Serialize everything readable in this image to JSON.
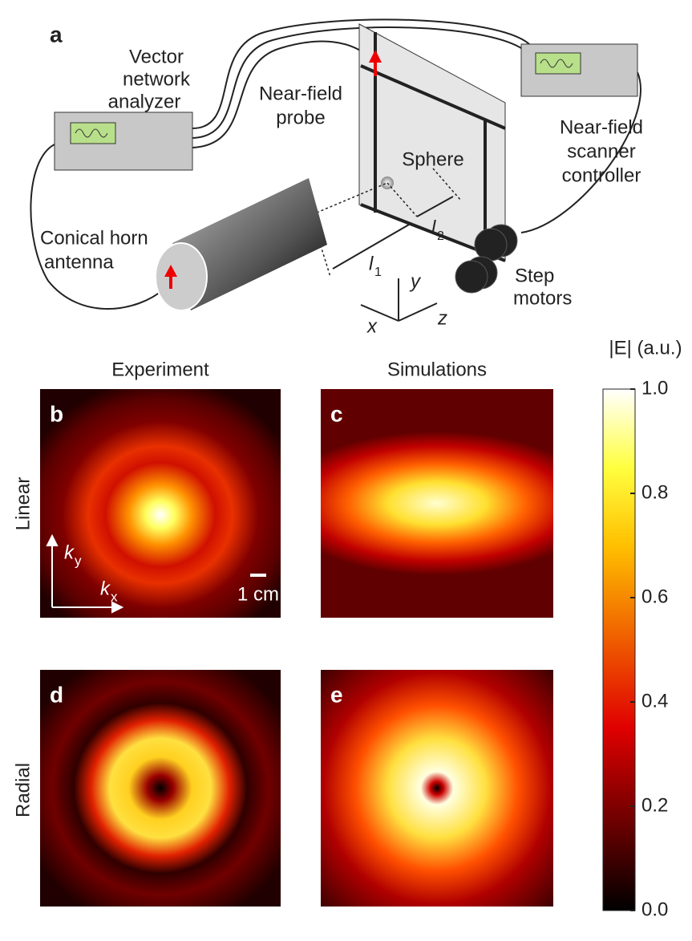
{
  "panel_a": {
    "letter": "a",
    "analyzer": [
      "Vector",
      "network",
      "analyzer"
    ],
    "probe": [
      "Near-field",
      "probe"
    ],
    "controller": [
      "Near-field",
      "scanner",
      "controller"
    ],
    "sphere": "Sphere",
    "antenna": [
      "Conical horn",
      "antenna"
    ],
    "motors": [
      "Step",
      "motors"
    ],
    "l1": {
      "symbol": "l",
      "sub": "1"
    },
    "l2": {
      "symbol": "l",
      "sub": "2"
    },
    "axes": {
      "x": "x",
      "y": "y",
      "z": "z"
    }
  },
  "columns": [
    "Experiment",
    "Simulations"
  ],
  "rows": [
    "Linear",
    "Radial"
  ],
  "panels": [
    "b",
    "c",
    "d",
    "e"
  ],
  "k_axes": {
    "ky": {
      "symbol": "k",
      "sub": "y"
    },
    "kx": {
      "symbol": "k",
      "sub": "x"
    }
  },
  "scale_bar": "1 cm",
  "colorbar": {
    "label": "|E| (a.u.)",
    "lim": [
      0,
      1
    ],
    "ticks": [
      {
        "value": 0,
        "label": "0.0"
      },
      0.2,
      0.4,
      0.6,
      0.8,
      {
        "value": 1,
        "label": "1.0"
      }
    ]
  }
}
